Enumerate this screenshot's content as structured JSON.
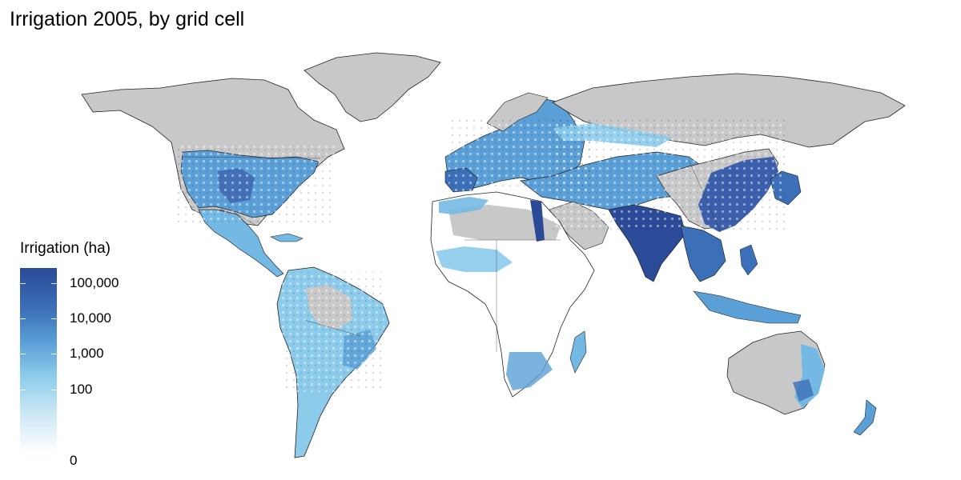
{
  "title": "Irrigation 2005, by grid cell",
  "legend": {
    "title": "Irrigation (ha)",
    "labels": [
      "100,000",
      "10,000",
      "1,000",
      "100",
      "0"
    ]
  },
  "colors": {
    "background": "#ffffff",
    "no_data_land": "#c8c8c8",
    "low_irrigation_land": "#ffffff",
    "scale_low": "#ffffff",
    "scale_mid": "#74b9e3",
    "scale_high": "#2b4a97",
    "borders": "#222222"
  }
}
